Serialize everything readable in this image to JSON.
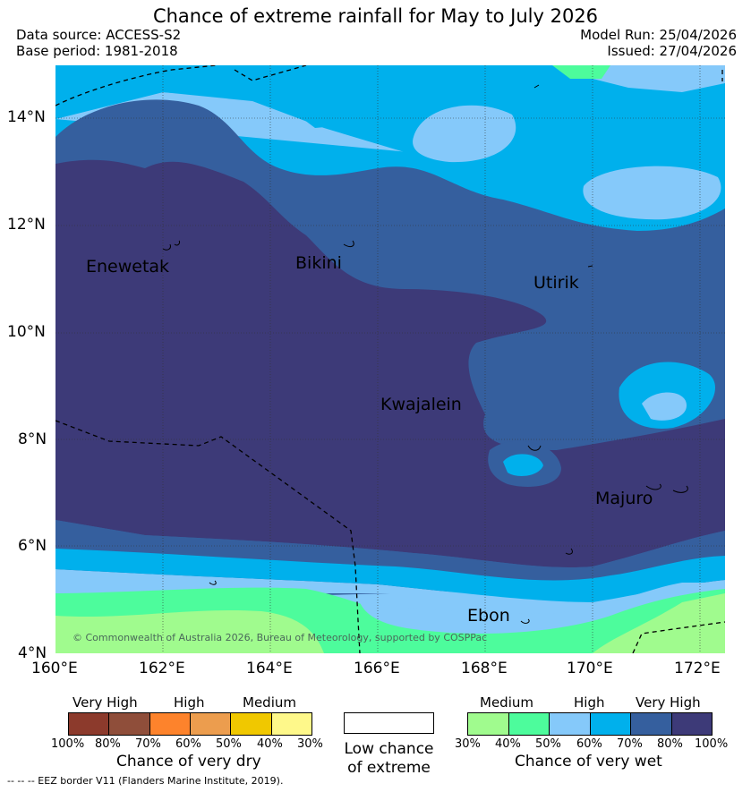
{
  "header": {
    "title": "Chance of extreme rainfall for May to July 2026",
    "data_source": "Data source: ACCESS-S2",
    "base_period": "Base period: 1981-2018",
    "model_run": "Model Run: 25/04/2026",
    "issued": "Issued: 27/04/2026"
  },
  "map": {
    "lat_labels": [
      "14°N",
      "12°N",
      "10°N",
      "8°N",
      "6°N",
      "4°N"
    ],
    "lon_labels": [
      "160°E",
      "162°E",
      "164°E",
      "166°E",
      "168°E",
      "170°E",
      "172°E"
    ],
    "places": [
      "Enewetak",
      "Bikini",
      "Utirik",
      "Kwajalein",
      "Majuro",
      "Ebon"
    ],
    "copyright": "© Commonwealth of Australia 2026, Bureau of Meteorology, supported by COSPPac",
    "colors": {
      "very_high_wet": "#3d3a78",
      "high_wet_80": "#355f9e",
      "high_wet_70": "#00b0ec",
      "medium_wet_60": "#85c9fa",
      "medium_wet_50": "#4dfc9c",
      "low_wet_40": "#a0fb8e",
      "land_outline": "#000000"
    }
  },
  "legend": {
    "dry": {
      "levels": [
        "Very High",
        "High",
        "Medium"
      ],
      "percents": [
        "100%",
        "80%",
        "70%",
        "60%",
        "50%",
        "40%",
        "30%"
      ],
      "caption": "Chance of very dry",
      "colors": [
        "#8c3a2c",
        "#8f4e3a",
        "#fd832c",
        "#ec9d4e",
        "#f0c800",
        "#fef88a"
      ]
    },
    "neutral": {
      "caption_line1": "Low chance",
      "caption_line2": "of extreme"
    },
    "wet": {
      "levels": [
        "Medium",
        "High",
        "Very High"
      ],
      "percents": [
        "30%",
        "40%",
        "50%",
        "60%",
        "70%",
        "80%",
        "100%"
      ],
      "caption": "Chance of very wet",
      "colors": [
        "#a0fb8e",
        "#4dfc9c",
        "#85c9fa",
        "#00b0ec",
        "#355f9e",
        "#3d3a78"
      ]
    }
  },
  "footer": {
    "eez_note": "--  --  -- EEZ border V11 (Flanders Marine Institute, 2019)."
  }
}
